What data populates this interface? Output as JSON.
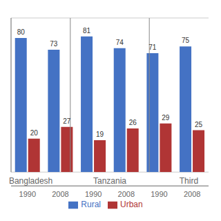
{
  "chart_data": {
    "type": "bar",
    "categories": [
      "1990",
      "2008",
      "1990",
      "2008",
      "1990",
      "2008"
    ],
    "groups": [
      "Bangladesh",
      "Tanzania",
      "Third"
    ],
    "series": [
      {
        "name": "Rural",
        "color": "#4472C4",
        "values": [
          80,
          73,
          81,
          74,
          71,
          75
        ]
      },
      {
        "name": "Urban",
        "color": "#B03535",
        "values": [
          20,
          27,
          19,
          26,
          29,
          25
        ]
      }
    ],
    "ylim": [
      0,
      92
    ],
    "yticks": [
      20,
      40,
      60,
      80
    ],
    "grid": true,
    "tick_labels": "x",
    "data_labels": true,
    "legend": "bottom"
  }
}
